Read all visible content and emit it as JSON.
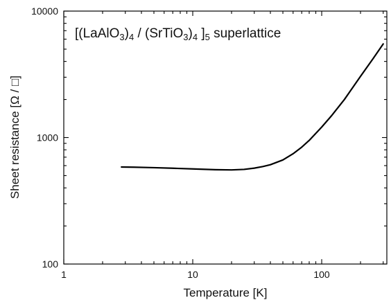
{
  "chart_data": {
    "type": "line",
    "title": {
      "parts": [
        {
          "text": "[(LaAlO",
          "sub": false
        },
        {
          "text": "3",
          "sub": true
        },
        {
          "text": ")",
          "sub": false
        },
        {
          "text": "4",
          "sub": true
        },
        {
          "text": " / (SrTiO",
          "sub": false
        },
        {
          "text": "3",
          "sub": true
        },
        {
          "text": ")",
          "sub": false
        },
        {
          "text": "4",
          "sub": true
        },
        {
          "text": " ]",
          "sub": false
        },
        {
          "text": "5",
          "sub": true
        },
        {
          "text": " superlattice",
          "sub": false
        }
      ]
    },
    "xlabel": "Temperature [K]",
    "ylabel": "Sheet resistance [Ω / □]",
    "xscale": "log",
    "yscale": "log",
    "xlim": [
      1,
      320
    ],
    "ylim": [
      100,
      10000
    ],
    "xticks": [
      {
        "value": 1,
        "label": "1"
      },
      {
        "value": 10,
        "label": "10"
      },
      {
        "value": 100,
        "label": "100"
      }
    ],
    "yticks": [
      {
        "value": 100,
        "label": "100"
      },
      {
        "value": 1000,
        "label": "1000"
      },
      {
        "value": 10000,
        "label": "10000"
      }
    ],
    "grid": false,
    "series": [
      {
        "color": "#000000",
        "x": [
          2.8,
          3.5,
          5,
          7,
          10,
          15,
          20,
          25,
          30,
          35,
          40,
          50,
          60,
          70,
          80,
          100,
          120,
          150,
          200,
          250,
          300
        ],
        "y": [
          585,
          583,
          578,
          572,
          565,
          557,
          555,
          560,
          573,
          590,
          610,
          665,
          745,
          840,
          950,
          1210,
          1500,
          2000,
          3050,
          4200,
          5500
        ]
      }
    ]
  }
}
